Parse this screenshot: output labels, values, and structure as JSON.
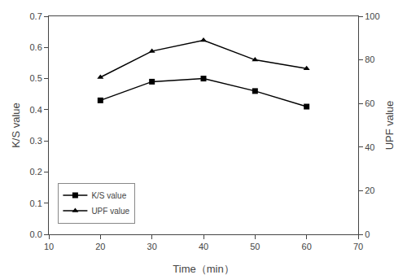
{
  "chart_data": {
    "type": "line",
    "x": [
      20,
      30,
      40,
      50,
      60
    ],
    "series": [
      {
        "name": "K/S value",
        "color": "#000000",
        "marker": "square",
        "values": [
          0.43,
          0.49,
          0.5,
          0.46,
          0.41
        ]
      },
      {
        "name": "UPF value",
        "color": "#000000",
        "marker": "triangle-up",
        "axis": "y2",
        "values": [
          72,
          84,
          89,
          80,
          76
        ]
      }
    ],
    "xlabel": "Time（min）",
    "ylabel": "K/S value",
    "y2label": "UPF value",
    "xlim": [
      10,
      70
    ],
    "xticks": [
      10,
      20,
      30,
      40,
      50,
      60,
      70
    ],
    "ylim": [
      0.0,
      0.7
    ],
    "yticks": [
      {
        "value": 0.0,
        "label": "0.0"
      },
      0.1,
      0.2,
      0.3,
      0.4,
      0.5,
      0.6,
      0.7
    ],
    "y2lim": [
      0,
      100
    ],
    "y2ticks": [
      0,
      20,
      40,
      60,
      80,
      100
    ],
    "grid": false,
    "legend": "lower left"
  }
}
